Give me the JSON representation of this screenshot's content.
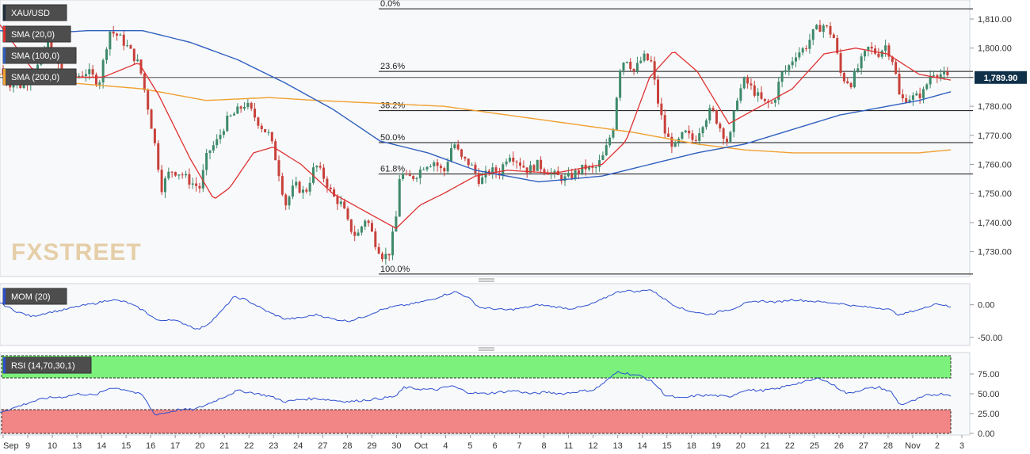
{
  "instrument": "XAU/USD",
  "indicators": {
    "sma20": {
      "label": "SMA (20,0)",
      "color": "#e03131"
    },
    "sma100": {
      "label": "SMA (100,0)",
      "color": "#2f5fbf"
    },
    "sma200": {
      "label": "SMA (200,0)",
      "color": "#f0a030"
    },
    "mom": {
      "label": "MOM (20)",
      "color": "#2b4fd0"
    },
    "rsi": {
      "label": "RSI (14,70,30,1)",
      "color": "#2b4fd0"
    }
  },
  "watermark": "FXSTREET",
  "last_price": "1,789.90",
  "fib_levels": [
    {
      "label": "0.0%",
      "value": 1813.5
    },
    {
      "label": "23.6%",
      "value": 1792.0
    },
    {
      "label": "38.2%",
      "value": 1778.5
    },
    {
      "label": "50.0%",
      "value": 1767.5
    },
    {
      "label": "61.8%",
      "value": 1756.7
    },
    {
      "label": "100.0%",
      "value": 1722.3
    }
  ],
  "chart_data": {
    "type": "candlestick",
    "price_axis": {
      "min": 1722,
      "max": 1816,
      "ticks": [
        1730,
        1740,
        1750,
        1760,
        1770,
        1780,
        1790,
        1800,
        1810
      ],
      "tick_labels": [
        "1,730.00",
        "1,740.00",
        "1,750.00",
        "1,760.00",
        "1,770.00",
        "1,780.00",
        "1,790.00",
        "1,800.00",
        "1,810.00"
      ]
    },
    "mom_axis": {
      "min": -60,
      "max": 30,
      "ticks": [
        0,
        -50
      ],
      "tick_labels": [
        "0.00",
        "-50.00"
      ]
    },
    "rsi_axis": {
      "min": 0,
      "max": 100,
      "ticks": [
        75,
        50,
        25,
        0
      ],
      "tick_labels": [
        "75.00",
        "50.00",
        "25.00",
        "0.00"
      ],
      "overbought": 70,
      "oversold": 30
    },
    "x_labels": [
      "Sep",
      "9",
      "10",
      "13",
      "14",
      "15",
      "16",
      "17",
      "20",
      "21",
      "22",
      "23",
      "24",
      "27",
      "28",
      "29",
      "30",
      "Oct",
      "4",
      "5",
      "6",
      "7",
      "8",
      "11",
      "12",
      "13",
      "14",
      "15",
      "18",
      "19",
      "20",
      "21",
      "22",
      "25",
      "26",
      "27",
      "28",
      "Nov",
      "2",
      "3"
    ],
    "close_anchors": [
      [
        0,
        1793
      ],
      [
        10,
        1788
      ],
      [
        25,
        1787
      ],
      [
        40,
        1790
      ],
      [
        50,
        1795
      ],
      [
        60,
        1803
      ],
      [
        70,
        1796
      ],
      [
        82,
        1790
      ],
      [
        95,
        1790
      ],
      [
        110,
        1792
      ],
      [
        125,
        1788
      ],
      [
        138,
        1806
      ],
      [
        150,
        1804
      ],
      [
        162,
        1800
      ],
      [
        176,
        1794
      ],
      [
        188,
        1778
      ],
      [
        196,
        1766
      ],
      [
        204,
        1752
      ],
      [
        215,
        1758
      ],
      [
        228,
        1757
      ],
      [
        240,
        1754
      ],
      [
        252,
        1752
      ],
      [
        262,
        1764
      ],
      [
        274,
        1768
      ],
      [
        286,
        1775
      ],
      [
        298,
        1778
      ],
      [
        310,
        1781
      ],
      [
        320,
        1777
      ],
      [
        330,
        1773
      ],
      [
        340,
        1770
      ],
      [
        350,
        1760
      ],
      [
        360,
        1746
      ],
      [
        372,
        1753
      ],
      [
        385,
        1750
      ],
      [
        398,
        1760
      ],
      [
        410,
        1755
      ],
      [
        420,
        1749
      ],
      [
        432,
        1746
      ],
      [
        440,
        1739
      ],
      [
        450,
        1735
      ],
      [
        462,
        1742
      ],
      [
        474,
        1733
      ],
      [
        484,
        1728
      ],
      [
        492,
        1730
      ],
      [
        500,
        1742
      ],
      [
        505,
        1758
      ],
      [
        512,
        1755
      ],
      [
        524,
        1756
      ],
      [
        536,
        1760
      ],
      [
        548,
        1761
      ],
      [
        560,
        1757
      ],
      [
        572,
        1768
      ],
      [
        582,
        1762
      ],
      [
        594,
        1760
      ],
      [
        606,
        1754
      ],
      [
        618,
        1758
      ],
      [
        630,
        1757
      ],
      [
        642,
        1764
      ],
      [
        654,
        1761
      ],
      [
        666,
        1758
      ],
      [
        678,
        1760
      ],
      [
        690,
        1758
      ],
      [
        702,
        1756
      ],
      [
        714,
        1755
      ],
      [
        726,
        1757
      ],
      [
        738,
        1759
      ],
      [
        750,
        1758
      ],
      [
        762,
        1763
      ],
      [
        774,
        1773
      ],
      [
        782,
        1793
      ],
      [
        790,
        1797
      ],
      [
        800,
        1792
      ],
      [
        812,
        1797
      ],
      [
        822,
        1795
      ],
      [
        830,
        1782
      ],
      [
        840,
        1770
      ],
      [
        852,
        1766
      ],
      [
        864,
        1771
      ],
      [
        876,
        1768
      ],
      [
        888,
        1775
      ],
      [
        898,
        1779
      ],
      [
        910,
        1772
      ],
      [
        920,
        1767
      ],
      [
        930,
        1783
      ],
      [
        940,
        1789
      ],
      [
        952,
        1785
      ],
      [
        964,
        1781
      ],
      [
        976,
        1781
      ],
      [
        986,
        1791
      ],
      [
        994,
        1793
      ],
      [
        1004,
        1798
      ],
      [
        1016,
        1800
      ],
      [
        1028,
        1806
      ],
      [
        1040,
        1808
      ],
      [
        1052,
        1804
      ],
      [
        1062,
        1790
      ],
      [
        1074,
        1788
      ],
      [
        1086,
        1795
      ],
      [
        1096,
        1800
      ],
      [
        1108,
        1798
      ],
      [
        1118,
        1801
      ],
      [
        1128,
        1795
      ],
      [
        1136,
        1782
      ],
      [
        1146,
        1783
      ],
      [
        1156,
        1783
      ],
      [
        1166,
        1785
      ],
      [
        1176,
        1792
      ],
      [
        1188,
        1791
      ],
      [
        1200,
        1789
      ]
    ],
    "sma20_anchors": [
      [
        0,
        1808
      ],
      [
        40,
        1793
      ],
      [
        80,
        1790
      ],
      [
        130,
        1790
      ],
      [
        175,
        1795
      ],
      [
        200,
        1784
      ],
      [
        240,
        1762
      ],
      [
        270,
        1748
      ],
      [
        290,
        1752
      ],
      [
        320,
        1764
      ],
      [
        345,
        1766
      ],
      [
        380,
        1760
      ],
      [
        420,
        1750
      ],
      [
        460,
        1744
      ],
      [
        500,
        1738
      ],
      [
        530,
        1746
      ],
      [
        560,
        1750
      ],
      [
        600,
        1756
      ],
      [
        640,
        1758
      ],
      [
        700,
        1757
      ],
      [
        760,
        1760
      ],
      [
        790,
        1768
      ],
      [
        820,
        1790
      ],
      [
        850,
        1799
      ],
      [
        880,
        1792
      ],
      [
        920,
        1774
      ],
      [
        960,
        1780
      ],
      [
        1000,
        1786
      ],
      [
        1040,
        1798
      ],
      [
        1080,
        1800
      ],
      [
        1120,
        1798
      ],
      [
        1160,
        1791
      ],
      [
        1200,
        1789
      ]
    ],
    "sma100_anchors": [
      [
        0,
        1806
      ],
      [
        50,
        1805
      ],
      [
        110,
        1806
      ],
      [
        180,
        1806
      ],
      [
        240,
        1802
      ],
      [
        300,
        1796
      ],
      [
        360,
        1788
      ],
      [
        420,
        1779
      ],
      [
        480,
        1768
      ],
      [
        540,
        1764
      ],
      [
        600,
        1758
      ],
      [
        680,
        1754
      ],
      [
        760,
        1756
      ],
      [
        820,
        1760
      ],
      [
        880,
        1764
      ],
      [
        940,
        1767
      ],
      [
        1000,
        1772
      ],
      [
        1060,
        1777
      ],
      [
        1120,
        1780
      ],
      [
        1160,
        1782
      ],
      [
        1200,
        1785
      ]
    ],
    "sma200_anchors": [
      [
        0,
        1791
      ],
      [
        90,
        1788
      ],
      [
        180,
        1786
      ],
      [
        260,
        1782
      ],
      [
        340,
        1783
      ],
      [
        400,
        1782
      ],
      [
        480,
        1781
      ],
      [
        560,
        1780
      ],
      [
        640,
        1777
      ],
      [
        720,
        1774
      ],
      [
        800,
        1771
      ],
      [
        880,
        1767
      ],
      [
        940,
        1765
      ],
      [
        1000,
        1764
      ],
      [
        1060,
        1764
      ],
      [
        1120,
        1764
      ],
      [
        1160,
        1764
      ],
      [
        1200,
        1765
      ]
    ],
    "mom_anchors": [
      [
        0,
        3
      ],
      [
        20,
        -10
      ],
      [
        40,
        -18
      ],
      [
        60,
        -12
      ],
      [
        80,
        -8
      ],
      [
        100,
        -2
      ],
      [
        120,
        2
      ],
      [
        140,
        8
      ],
      [
        160,
        4
      ],
      [
        180,
        -8
      ],
      [
        200,
        -25
      ],
      [
        215,
        -22
      ],
      [
        235,
        -30
      ],
      [
        250,
        -38
      ],
      [
        262,
        -30
      ],
      [
        278,
        -12
      ],
      [
        295,
        12
      ],
      [
        310,
        8
      ],
      [
        325,
        -2
      ],
      [
        340,
        -12
      ],
      [
        360,
        -22
      ],
      [
        380,
        -20
      ],
      [
        400,
        -15
      ],
      [
        420,
        -22
      ],
      [
        440,
        -25
      ],
      [
        460,
        -18
      ],
      [
        480,
        -8
      ],
      [
        500,
        -2
      ],
      [
        515,
        0
      ],
      [
        530,
        4
      ],
      [
        545,
        8
      ],
      [
        560,
        15
      ],
      [
        575,
        20
      ],
      [
        590,
        12
      ],
      [
        605,
        -4
      ],
      [
        620,
        -6
      ],
      [
        640,
        -8
      ],
      [
        660,
        -5
      ],
      [
        680,
        0
      ],
      [
        700,
        -3
      ],
      [
        720,
        -6
      ],
      [
        740,
        -2
      ],
      [
        760,
        8
      ],
      [
        775,
        18
      ],
      [
        790,
        22
      ],
      [
        805,
        20
      ],
      [
        820,
        24
      ],
      [
        835,
        12
      ],
      [
        850,
        0
      ],
      [
        865,
        -8
      ],
      [
        880,
        -12
      ],
      [
        895,
        -15
      ],
      [
        910,
        -10
      ],
      [
        925,
        -6
      ],
      [
        940,
        2
      ],
      [
        960,
        6
      ],
      [
        980,
        4
      ],
      [
        1000,
        8
      ],
      [
        1020,
        6
      ],
      [
        1040,
        4
      ],
      [
        1060,
        2
      ],
      [
        1080,
        -2
      ],
      [
        1100,
        -4
      ],
      [
        1120,
        -6
      ],
      [
        1136,
        -16
      ],
      [
        1150,
        -10
      ],
      [
        1165,
        -6
      ],
      [
        1180,
        2
      ],
      [
        1190,
        0
      ],
      [
        1200,
        -4
      ]
    ],
    "rsi_anchors": [
      [
        0,
        27
      ],
      [
        20,
        33
      ],
      [
        40,
        40
      ],
      [
        60,
        45
      ],
      [
        80,
        46
      ],
      [
        100,
        50
      ],
      [
        120,
        48
      ],
      [
        140,
        58
      ],
      [
        160,
        55
      ],
      [
        180,
        48
      ],
      [
        195,
        24
      ],
      [
        210,
        26
      ],
      [
        225,
        30
      ],
      [
        245,
        30
      ],
      [
        260,
        36
      ],
      [
        280,
        45
      ],
      [
        300,
        54
      ],
      [
        320,
        51
      ],
      [
        340,
        47
      ],
      [
        360,
        40
      ],
      [
        380,
        43
      ],
      [
        400,
        44
      ],
      [
        420,
        42
      ],
      [
        440,
        40
      ],
      [
        460,
        42
      ],
      [
        480,
        44
      ],
      [
        500,
        47
      ],
      [
        510,
        58
      ],
      [
        530,
        56
      ],
      [
        550,
        55
      ],
      [
        570,
        60
      ],
      [
        590,
        52
      ],
      [
        610,
        50
      ],
      [
        630,
        52
      ],
      [
        650,
        54
      ],
      [
        670,
        50
      ],
      [
        690,
        52
      ],
      [
        710,
        50
      ],
      [
        730,
        53
      ],
      [
        750,
        55
      ],
      [
        765,
        66
      ],
      [
        780,
        78
      ],
      [
        795,
        75
      ],
      [
        810,
        72
      ],
      [
        825,
        64
      ],
      [
        840,
        48
      ],
      [
        860,
        44
      ],
      [
        880,
        48
      ],
      [
        900,
        48
      ],
      [
        920,
        46
      ],
      [
        940,
        55
      ],
      [
        960,
        54
      ],
      [
        980,
        56
      ],
      [
        1000,
        62
      ],
      [
        1020,
        66
      ],
      [
        1035,
        70
      ],
      [
        1050,
        62
      ],
      [
        1070,
        50
      ],
      [
        1090,
        56
      ],
      [
        1110,
        58
      ],
      [
        1125,
        52
      ],
      [
        1136,
        36
      ],
      [
        1150,
        40
      ],
      [
        1170,
        48
      ],
      [
        1190,
        50
      ],
      [
        1200,
        48
      ]
    ]
  }
}
